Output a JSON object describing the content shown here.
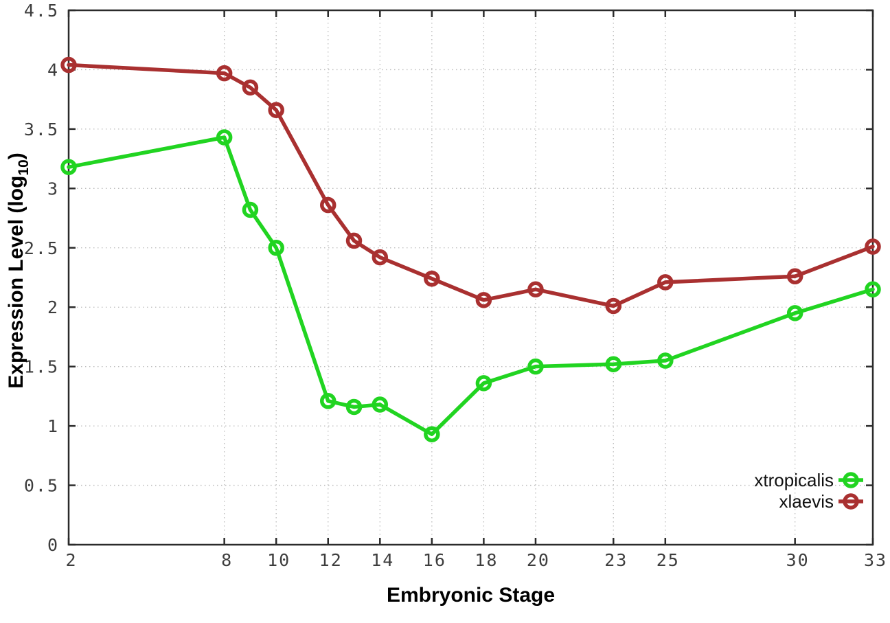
{
  "figure": {
    "background": "#ffffff",
    "border_color": "#2b2b2b",
    "grid_color": "#bcbcbc",
    "tick_label_color": "#3d3d3d"
  },
  "chart_data": {
    "type": "line",
    "title": "",
    "xlabel": "Embryonic Stage",
    "ylabel": "Expression Level (log10)",
    "ylabel_subscript": "10",
    "xlim": [
      2,
      33
    ],
    "ylim": [
      0,
      4.5
    ],
    "x_ticks": [
      2,
      8,
      10,
      12,
      14,
      16,
      18,
      20,
      23,
      25,
      30,
      33
    ],
    "y_ticks": [
      0,
      0.5,
      1,
      1.5,
      2,
      2.5,
      3,
      3.5,
      4,
      4.5
    ],
    "grid": true,
    "marker": "open-circle",
    "legend_position": "bottom-right",
    "x": [
      2,
      8,
      9,
      10,
      12,
      13,
      14,
      16,
      18,
      20,
      23,
      25,
      30,
      33
    ],
    "series": [
      {
        "name": "xtropicalis",
        "color": "#21d421",
        "values": [
          3.18,
          3.43,
          2.82,
          2.5,
          1.21,
          1.16,
          1.18,
          0.93,
          1.36,
          1.5,
          1.52,
          1.55,
          1.95,
          2.15
        ]
      },
      {
        "name": "xlaevis",
        "color": "#a93030",
        "values": [
          4.04,
          3.97,
          3.85,
          3.66,
          2.86,
          2.56,
          2.42,
          2.24,
          2.06,
          2.15,
          2.01,
          2.21,
          2.26,
          2.51
        ]
      }
    ]
  }
}
